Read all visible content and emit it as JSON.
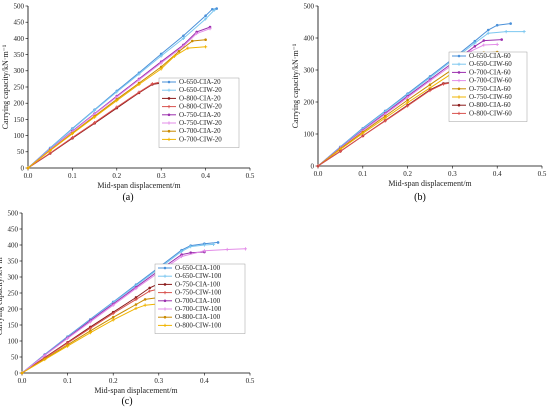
{
  "chart_data": [
    {
      "type": "line",
      "panel_label": "(a)",
      "xlabel": "Mid-span displacement/m",
      "ylabel": "Carrying capacity/kN·m⁻¹",
      "xlim": [
        0,
        0.5
      ],
      "ylim": [
        0,
        500
      ],
      "xticks": [
        "0.0",
        "0.1",
        "0.2",
        "0.3",
        "0.4",
        "0.5"
      ],
      "yticks": [
        "0",
        "50",
        "100",
        "150",
        "200",
        "250",
        "300",
        "350",
        "400",
        "450",
        "500"
      ],
      "legend_position": "right-middle",
      "series": [
        {
          "name": "O-650-CIA-20",
          "color": "#4a90d9",
          "marker": "circle",
          "x": [
            0,
            0.05,
            0.1,
            0.15,
            0.2,
            0.25,
            0.3,
            0.35,
            0.4,
            0.415,
            0.425
          ],
          "y": [
            0,
            62,
            122,
            180,
            238,
            294,
            352,
            408,
            470,
            490,
            492
          ]
        },
        {
          "name": "O-650-CIW-20",
          "color": "#7cc7f0",
          "marker": "star",
          "x": [
            0,
            0.05,
            0.1,
            0.15,
            0.2,
            0.25,
            0.3,
            0.35,
            0.4,
            0.42
          ],
          "y": [
            0,
            61,
            120,
            178,
            235,
            290,
            346,
            400,
            460,
            488
          ]
        },
        {
          "name": "O-800-CIA-20",
          "color": "#8b1a1a",
          "marker": "circle",
          "x": [
            0,
            0.05,
            0.1,
            0.15,
            0.2,
            0.25,
            0.28,
            0.3,
            0.31
          ],
          "y": [
            0,
            45,
            92,
            138,
            185,
            232,
            258,
            262,
            262
          ]
        },
        {
          "name": "O-800-CIW-20",
          "color": "#d9534f",
          "marker": "star",
          "x": [
            0,
            0.05,
            0.1,
            0.15,
            0.2,
            0.25,
            0.28,
            0.3,
            0.31
          ],
          "y": [
            0,
            46,
            94,
            140,
            188,
            234,
            260,
            266,
            266
          ]
        },
        {
          "name": "O-750-CIA-20",
          "color": "#9b2fae",
          "marker": "circle",
          "x": [
            0,
            0.05,
            0.1,
            0.15,
            0.2,
            0.25,
            0.3,
            0.35,
            0.38,
            0.41
          ],
          "y": [
            0,
            58,
            114,
            168,
            222,
            275,
            328,
            380,
            420,
            435
          ]
        },
        {
          "name": "O-750-CIW-20",
          "color": "#e38de8",
          "marker": "star",
          "x": [
            0,
            0.05,
            0.1,
            0.15,
            0.2,
            0.25,
            0.3,
            0.35,
            0.38,
            0.41
          ],
          "y": [
            0,
            57,
            112,
            166,
            219,
            272,
            324,
            376,
            415,
            430
          ]
        },
        {
          "name": "O-700-CIA-20",
          "color": "#c98a00",
          "marker": "circle",
          "x": [
            0,
            0.05,
            0.1,
            0.15,
            0.2,
            0.25,
            0.3,
            0.34,
            0.37,
            0.4
          ],
          "y": [
            0,
            55,
            108,
            160,
            212,
            262,
            312,
            360,
            392,
            396
          ]
        },
        {
          "name": "O-700-CIW-20",
          "color": "#f0b400",
          "marker": "star",
          "x": [
            0,
            0.05,
            0.1,
            0.15,
            0.2,
            0.25,
            0.3,
            0.33,
            0.36,
            0.4
          ],
          "y": [
            0,
            54,
            106,
            157,
            208,
            258,
            306,
            345,
            370,
            374
          ]
        }
      ]
    },
    {
      "type": "line",
      "panel_label": "(b)",
      "xlabel": "Mid-span displacement/m",
      "ylabel": "Carrying capacity/kN·m⁻¹",
      "xlim": [
        0,
        0.5
      ],
      "ylim": [
        0,
        500
      ],
      "xticks": [
        "0.0",
        "0.1",
        "0.2",
        "0.3",
        "0.4",
        "0.5"
      ],
      "yticks": [
        "0",
        "100",
        "200",
        "300",
        "400",
        "500"
      ],
      "legend_position": "right-middle",
      "series": [
        {
          "name": "O-650-CIA-60",
          "color": "#4a90d9",
          "marker": "circle",
          "x": [
            0,
            0.05,
            0.1,
            0.15,
            0.2,
            0.25,
            0.3,
            0.35,
            0.38,
            0.4,
            0.43
          ],
          "y": [
            0,
            60,
            118,
            172,
            226,
            280,
            334,
            390,
            425,
            440,
            445
          ]
        },
        {
          "name": "O-650-CIW-60",
          "color": "#7cc7f0",
          "marker": "star",
          "x": [
            0,
            0.05,
            0.1,
            0.15,
            0.2,
            0.25,
            0.3,
            0.35,
            0.38,
            0.42,
            0.46
          ],
          "y": [
            0,
            59,
            116,
            170,
            223,
            276,
            330,
            384,
            415,
            420,
            420
          ]
        },
        {
          "name": "O-700-CIA-60",
          "color": "#9b2fae",
          "marker": "circle",
          "x": [
            0,
            0.05,
            0.1,
            0.15,
            0.2,
            0.25,
            0.3,
            0.35,
            0.37,
            0.41
          ],
          "y": [
            0,
            57,
            112,
            165,
            218,
            270,
            322,
            374,
            392,
            395
          ]
        },
        {
          "name": "O-700-CIW-60",
          "color": "#e38de8",
          "marker": "star",
          "x": [
            0,
            0.05,
            0.1,
            0.15,
            0.2,
            0.25,
            0.3,
            0.34,
            0.37,
            0.4
          ],
          "y": [
            0,
            56,
            110,
            162,
            214,
            266,
            316,
            358,
            378,
            380
          ]
        },
        {
          "name": "O-750-CIA-60",
          "color": "#c98a00",
          "marker": "circle",
          "x": [
            0,
            0.05,
            0.1,
            0.15,
            0.2,
            0.25,
            0.3,
            0.34,
            0.37,
            0.4
          ],
          "y": [
            0,
            54,
            106,
            156,
            206,
            254,
            302,
            340,
            354,
            356
          ]
        },
        {
          "name": "O-750-CIW-60",
          "color": "#f0b400",
          "marker": "star",
          "x": [
            0,
            0.05,
            0.1,
            0.15,
            0.2,
            0.25,
            0.3,
            0.34,
            0.37,
            0.4
          ],
          "y": [
            0,
            52,
            102,
            150,
            198,
            244,
            290,
            322,
            330,
            332
          ]
        },
        {
          "name": "O-800-CIA-60",
          "color": "#8b1a1a",
          "marker": "circle",
          "x": [
            0,
            0.05,
            0.1,
            0.15,
            0.2,
            0.25,
            0.28,
            0.3,
            0.33
          ],
          "y": [
            0,
            46,
            94,
            142,
            190,
            238,
            258,
            262,
            262
          ]
        },
        {
          "name": "O-800-CIW-60",
          "color": "#d9534f",
          "marker": "star",
          "x": [
            0,
            0.05,
            0.1,
            0.15,
            0.2,
            0.25,
            0.28,
            0.3,
            0.32
          ],
          "y": [
            0,
            46,
            94,
            141,
            188,
            236,
            256,
            260,
            260
          ]
        }
      ]
    },
    {
      "type": "line",
      "panel_label": "(c)",
      "xlabel": "Mid-span displacement/m",
      "ylabel": "Carrying capacity/kN·m⁻¹",
      "xlim": [
        0,
        0.5
      ],
      "ylim": [
        0,
        500
      ],
      "xticks": [
        "0.0",
        "0.1",
        "0.2",
        "0.3",
        "0.4",
        "0.5"
      ],
      "yticks": [
        "0",
        "50",
        "100",
        "150",
        "200",
        "250",
        "300",
        "350",
        "400",
        "450",
        "500"
      ],
      "legend_position": "right-middle",
      "series": [
        {
          "name": "O-650-CIA-100",
          "color": "#4a90d9",
          "marker": "circle",
          "x": [
            0,
            0.05,
            0.1,
            0.15,
            0.2,
            0.25,
            0.3,
            0.35,
            0.37,
            0.4,
            0.43
          ],
          "y": [
            0,
            58,
            114,
            168,
            222,
            276,
            330,
            384,
            398,
            404,
            408
          ]
        },
        {
          "name": "O-650-CIW-100",
          "color": "#7cc7f0",
          "marker": "star",
          "x": [
            0,
            0.05,
            0.1,
            0.15,
            0.2,
            0.25,
            0.3,
            0.35,
            0.37,
            0.4,
            0.42
          ],
          "y": [
            0,
            57,
            112,
            166,
            220,
            273,
            326,
            380,
            395,
            400,
            402
          ]
        },
        {
          "name": "O-750-CIA-100",
          "color": "#8b1a1a",
          "marker": "circle",
          "x": [
            0,
            0.05,
            0.1,
            0.15,
            0.2,
            0.25,
            0.28,
            0.31,
            0.34
          ],
          "y": [
            0,
            48,
            96,
            144,
            190,
            236,
            266,
            286,
            298
          ]
        },
        {
          "name": "O-750-CIW-100",
          "color": "#d9534f",
          "marker": "star",
          "x": [
            0,
            0.05,
            0.1,
            0.15,
            0.2,
            0.25,
            0.28,
            0.31,
            0.34
          ],
          "y": [
            0,
            47,
            94,
            140,
            186,
            230,
            256,
            266,
            268
          ]
        },
        {
          "name": "O-700-CIA-100",
          "color": "#9b2fae",
          "marker": "circle",
          "x": [
            0,
            0.05,
            0.1,
            0.15,
            0.2,
            0.25,
            0.3,
            0.35,
            0.37,
            0.4
          ],
          "y": [
            0,
            56,
            110,
            164,
            216,
            268,
            320,
            370,
            376,
            378
          ]
        },
        {
          "name": "O-700-CIW-100",
          "color": "#e38de8",
          "marker": "star",
          "x": [
            0,
            0.05,
            0.1,
            0.15,
            0.2,
            0.25,
            0.3,
            0.35,
            0.4,
            0.45,
            0.49
          ],
          "y": [
            0,
            55,
            108,
            160,
            212,
            264,
            314,
            364,
            382,
            386,
            388
          ]
        },
        {
          "name": "O-800-CIA-100",
          "color": "#c98a00",
          "marker": "circle",
          "x": [
            0,
            0.05,
            0.1,
            0.15,
            0.2,
            0.25,
            0.27,
            0.3,
            0.32
          ],
          "y": [
            0,
            44,
            88,
            132,
            174,
            214,
            230,
            236,
            236
          ]
        },
        {
          "name": "O-800-CIW-100",
          "color": "#f0b400",
          "marker": "star",
          "x": [
            0,
            0.05,
            0.1,
            0.15,
            0.2,
            0.25,
            0.27,
            0.3,
            0.32
          ],
          "y": [
            0,
            42,
            84,
            126,
            166,
            202,
            212,
            216,
            216
          ]
        }
      ]
    }
  ]
}
